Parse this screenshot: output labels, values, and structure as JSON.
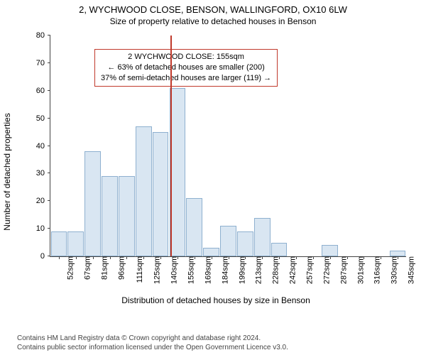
{
  "title": "2, WYCHWOOD CLOSE, BENSON, WALLINGFORD, OX10 6LW",
  "subtitle": "Size of property relative to detached houses in Benson",
  "ylabel": "Number of detached properties",
  "xlabel": "Distribution of detached houses by size in Benson",
  "chart": {
    "type": "histogram",
    "ylim": [
      0,
      80
    ],
    "ytick_step": 10,
    "bar_color": "#d9e6f2",
    "bar_border_color": "#8eb0cf",
    "vline_color": "#c0392b",
    "background_color": "#ffffff",
    "axis_color": "#444444",
    "text_color": "#000000",
    "bar_width_ratio": 0.95,
    "vline_x_index": 7.1,
    "categories": [
      "52sqm",
      "67sqm",
      "81sqm",
      "96sqm",
      "111sqm",
      "125sqm",
      "140sqm",
      "155sqm",
      "169sqm",
      "184sqm",
      "199sqm",
      "213sqm",
      "228sqm",
      "242sqm",
      "257sqm",
      "272sqm",
      "287sqm",
      "301sqm",
      "316sqm",
      "330sqm",
      "345sqm"
    ],
    "values": [
      9,
      9,
      38,
      29,
      29,
      47,
      45,
      61,
      21,
      3,
      11,
      9,
      14,
      5,
      0,
      0,
      4,
      0,
      0,
      0,
      2
    ]
  },
  "annotation": {
    "line1": "2 WYCHWOOD CLOSE: 155sqm",
    "line2": "← 63% of detached houses are smaller (200)",
    "line3": "37% of semi-detached houses are larger (119) →",
    "border_color": "#c0392b",
    "fontsize": 11,
    "left_bar_index": 2.6,
    "top_y_value": 75
  },
  "footer": {
    "line1": "Contains HM Land Registry data © Crown copyright and database right 2024.",
    "line2": "Contains public sector information licensed under the Open Government Licence v3.0.",
    "color": "#444444",
    "fontsize": 10
  }
}
